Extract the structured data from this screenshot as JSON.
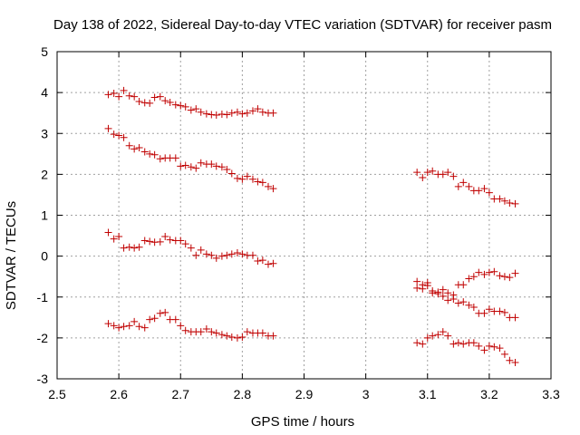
{
  "chart_data": {
    "type": "scatter",
    "title": "Day 138 of 2022, Sidereal Day-to-day VTEC variation (SDTVAR) for receiver pasm",
    "xlabel": "GPS time / hours",
    "ylabel": "SDTVAR / TECUs",
    "xlim": [
      2.5,
      3.3
    ],
    "ylim": [
      -3,
      5
    ],
    "xticks": [
      2.5,
      2.6,
      2.7,
      2.8,
      2.9,
      3.0,
      3.1,
      3.2,
      3.3
    ],
    "xtick_labels": [
      "2.5",
      "2.6",
      "2.7",
      "2.8",
      "2.9",
      "3",
      "3.1",
      "3.2",
      "3.3"
    ],
    "yticks": [
      -3,
      -2,
      -1,
      0,
      1,
      2,
      3,
      4,
      5
    ],
    "ytick_labels": [
      "-3",
      "-2",
      "-1",
      "0",
      "1",
      "2",
      "3",
      "4",
      "5"
    ],
    "grid": true,
    "marker": "+",
    "color": "#c00000",
    "series": [
      {
        "name": "series-1",
        "x": [
          2.583,
          2.592,
          2.6,
          2.608,
          2.617,
          2.625,
          2.633,
          2.642,
          2.65,
          2.658,
          2.667,
          2.675,
          2.683,
          2.692,
          2.7,
          2.708,
          2.717,
          2.725,
          2.733,
          2.742,
          2.75,
          2.758,
          2.767,
          2.775,
          2.783,
          2.792,
          2.8,
          2.808,
          2.817,
          2.825,
          2.833,
          2.842,
          2.85
        ],
        "y": [
          3.95,
          3.98,
          3.9,
          4.05,
          3.92,
          3.9,
          3.78,
          3.75,
          3.74,
          3.88,
          3.9,
          3.8,
          3.76,
          3.7,
          3.68,
          3.65,
          3.57,
          3.6,
          3.52,
          3.48,
          3.46,
          3.45,
          3.47,
          3.46,
          3.5,
          3.52,
          3.48,
          3.5,
          3.55,
          3.6,
          3.52,
          3.5,
          3.5
        ]
      },
      {
        "name": "series-2",
        "x": [
          2.583,
          2.592,
          2.6,
          2.608,
          2.617,
          2.625,
          2.633,
          2.642,
          2.65,
          2.658,
          2.667,
          2.675,
          2.683,
          2.692,
          2.7,
          2.708,
          2.717,
          2.725,
          2.733,
          2.742,
          2.75,
          2.758,
          2.767,
          2.775,
          2.783,
          2.792,
          2.8,
          2.808,
          2.817,
          2.825,
          2.833,
          2.842,
          2.85
        ],
        "y": [
          3.12,
          2.98,
          2.95,
          2.9,
          2.7,
          2.62,
          2.65,
          2.55,
          2.5,
          2.48,
          2.38,
          2.4,
          2.4,
          2.4,
          2.2,
          2.22,
          2.18,
          2.15,
          2.28,
          2.25,
          2.25,
          2.2,
          2.18,
          2.12,
          2.02,
          1.9,
          1.88,
          1.95,
          1.88,
          1.82,
          1.8,
          1.7,
          1.65
        ]
      },
      {
        "name": "series-3",
        "x": [
          2.583,
          2.592,
          2.6,
          2.608,
          2.617,
          2.625,
          2.633,
          2.642,
          2.65,
          2.658,
          2.667,
          2.675,
          2.683,
          2.692,
          2.7,
          2.708,
          2.717,
          2.725,
          2.733,
          2.742,
          2.75,
          2.758,
          2.767,
          2.775,
          2.783,
          2.792,
          2.8,
          2.808,
          2.817,
          2.825,
          2.833,
          2.842,
          2.85
        ],
        "y": [
          0.58,
          0.42,
          0.48,
          0.2,
          0.22,
          0.2,
          0.22,
          0.38,
          0.36,
          0.34,
          0.35,
          0.48,
          0.4,
          0.38,
          0.38,
          0.3,
          0.2,
          0.02,
          0.15,
          0.05,
          0.02,
          -0.05,
          0.0,
          0.02,
          0.05,
          0.08,
          0.05,
          0.02,
          0.02,
          -0.12,
          -0.1,
          -0.2,
          -0.18
        ]
      },
      {
        "name": "series-4",
        "x": [
          2.583,
          2.592,
          2.6,
          2.608,
          2.617,
          2.625,
          2.633,
          2.642,
          2.65,
          2.658,
          2.667,
          2.675,
          2.683,
          2.692,
          2.7,
          2.708,
          2.717,
          2.725,
          2.733,
          2.742,
          2.75,
          2.758,
          2.767,
          2.775,
          2.783,
          2.792,
          2.8,
          2.808,
          2.817,
          2.825,
          2.833,
          2.842,
          2.85
        ],
        "y": [
          -1.65,
          -1.7,
          -1.75,
          -1.72,
          -1.7,
          -1.6,
          -1.72,
          -1.75,
          -1.55,
          -1.52,
          -1.4,
          -1.38,
          -1.55,
          -1.55,
          -1.7,
          -1.82,
          -1.85,
          -1.85,
          -1.85,
          -1.78,
          -1.85,
          -1.88,
          -1.92,
          -1.95,
          -1.98,
          -2.0,
          -1.98,
          -1.85,
          -1.88,
          -1.88,
          -1.88,
          -1.95,
          -1.95
        ]
      },
      {
        "name": "series-5",
        "x": [
          3.083,
          3.092,
          3.1,
          3.108,
          3.117,
          3.125,
          3.133,
          3.142,
          3.15,
          3.158,
          3.167,
          3.175,
          3.183,
          3.192,
          3.2,
          3.208,
          3.217,
          3.225,
          3.233,
          3.242
        ],
        "y": [
          2.05,
          1.92,
          2.05,
          2.08,
          2.0,
          2.0,
          2.05,
          1.95,
          1.7,
          1.8,
          1.7,
          1.6,
          1.6,
          1.65,
          1.55,
          1.4,
          1.4,
          1.35,
          1.3,
          1.28
        ]
      },
      {
        "name": "series-6",
        "x": [
          3.083,
          3.092,
          3.1,
          3.108,
          3.117,
          3.125,
          3.133,
          3.142,
          3.15,
          3.158,
          3.167,
          3.175,
          3.183,
          3.192,
          3.2,
          3.208,
          3.217,
          3.225,
          3.233,
          3.242
        ],
        "y": [
          -0.62,
          -0.7,
          -0.65,
          -0.9,
          -0.92,
          -0.82,
          -0.9,
          -0.95,
          -0.7,
          -0.7,
          -0.55,
          -0.5,
          -0.4,
          -0.45,
          -0.4,
          -0.38,
          -0.48,
          -0.5,
          -0.52,
          -0.42
        ]
      },
      {
        "name": "series-7",
        "x": [
          3.083,
          3.092,
          3.1,
          3.108,
          3.117,
          3.125,
          3.133,
          3.142,
          3.15,
          3.158,
          3.167,
          3.175,
          3.183,
          3.192,
          3.2,
          3.208,
          3.217,
          3.225,
          3.233,
          3.242
        ],
        "y": [
          -0.78,
          -0.8,
          -0.72,
          -0.85,
          -0.88,
          -0.98,
          -1.08,
          -1.05,
          -1.15,
          -1.12,
          -1.2,
          -1.25,
          -1.4,
          -1.4,
          -1.3,
          -1.35,
          -1.35,
          -1.38,
          -1.5,
          -1.5
        ]
      },
      {
        "name": "series-8",
        "x": [
          3.083,
          3.092,
          3.1,
          3.108,
          3.117,
          3.125,
          3.133,
          3.142,
          3.15,
          3.158,
          3.167,
          3.175,
          3.183,
          3.192,
          3.2,
          3.208,
          3.217,
          3.225,
          3.233,
          3.242
        ],
        "y": [
          -2.12,
          -2.15,
          -2.0,
          -1.95,
          -1.92,
          -1.85,
          -1.95,
          -2.15,
          -2.12,
          -2.15,
          -2.12,
          -2.12,
          -2.2,
          -2.3,
          -2.2,
          -2.22,
          -2.25,
          -2.4,
          -2.55,
          -2.6
        ]
      }
    ]
  }
}
